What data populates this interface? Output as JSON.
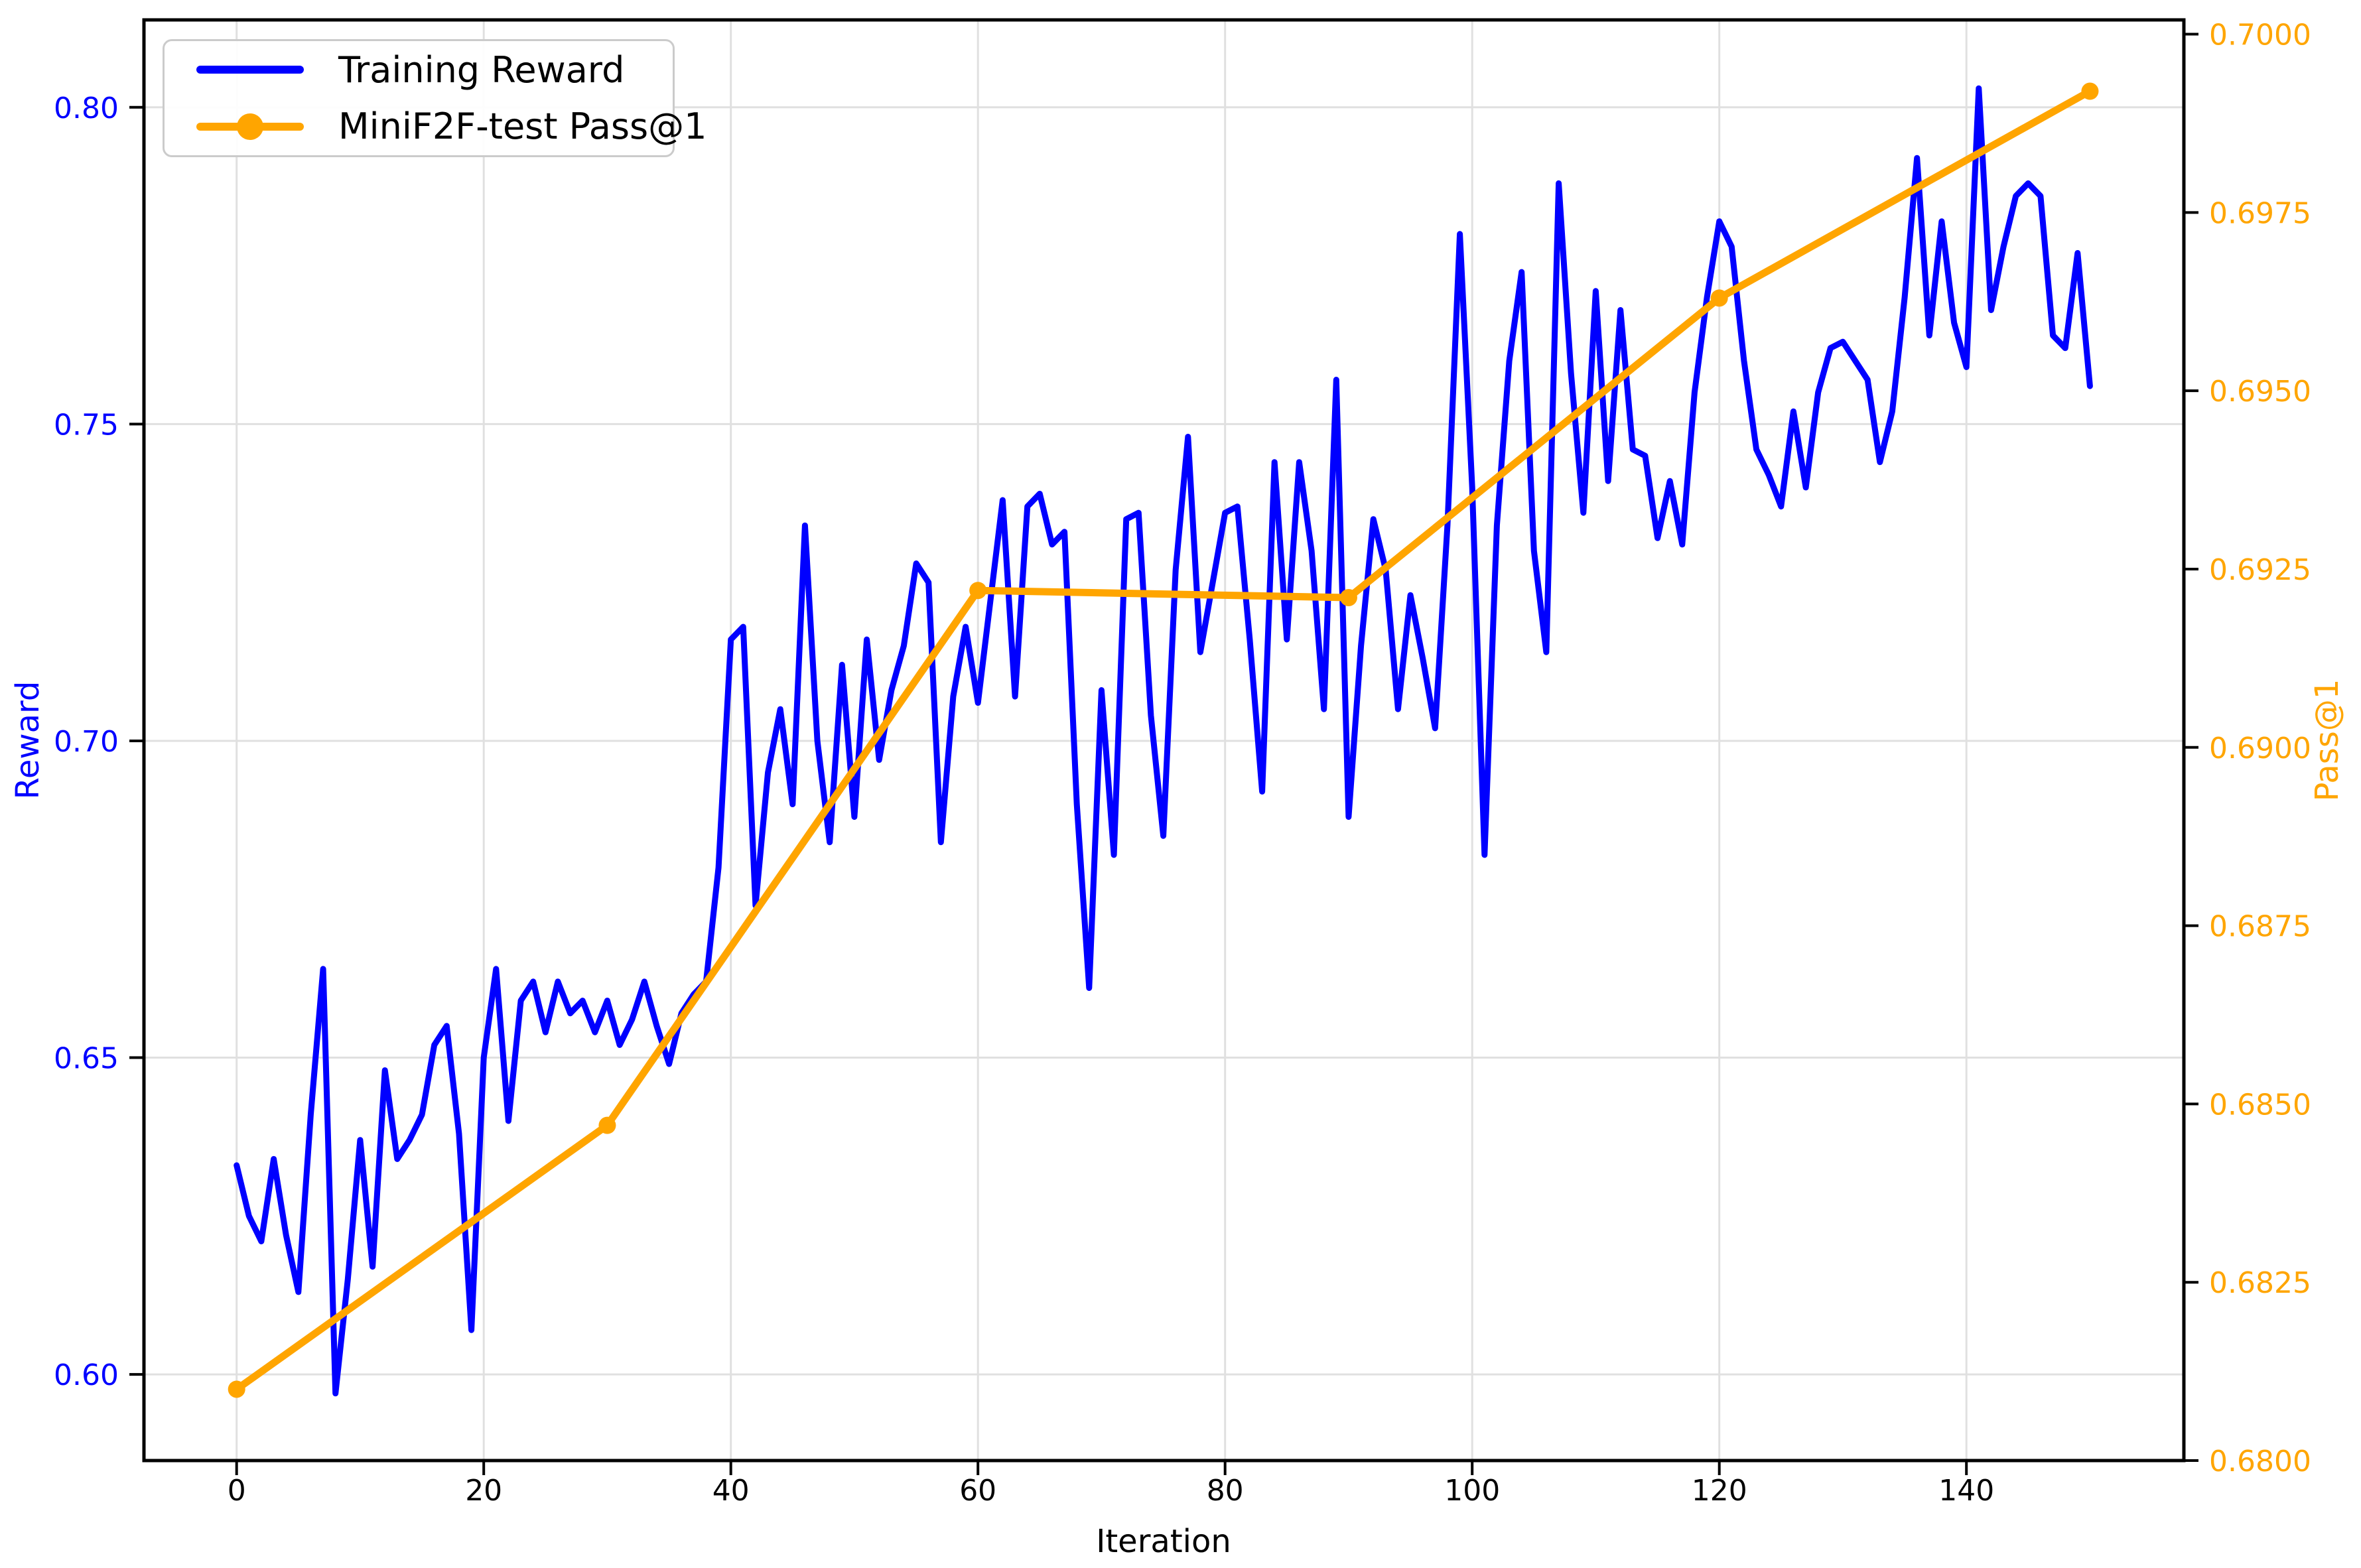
{
  "figure": {
    "background": "#ffffff",
    "accent_blue": "#0000ff",
    "accent_orange": "#ffa500",
    "grid_color": "#e0e0e0",
    "spine_color": "#000000"
  },
  "chart_data": {
    "type": "line",
    "title": "",
    "xlabel": "Iteration",
    "ylabel_left": "Reward",
    "ylabel_right": "Pass@1",
    "grid": true,
    "legend_position": "upper left",
    "xlim": [
      -7.5,
      157.6
    ],
    "ylim_left": [
      0.5864,
      0.8138
    ],
    "ylim_right": [
      0.68,
      0.7002
    ],
    "x_ticks": {
      "values": [
        0,
        20,
        40,
        60,
        80,
        100,
        120,
        140
      ],
      "labels": [
        "0",
        "20",
        "40",
        "60",
        "80",
        "100",
        "120",
        "140"
      ]
    },
    "yleft_ticks": {
      "values": [
        0.6,
        0.65,
        0.7,
        0.75,
        0.8
      ],
      "labels": [
        "0.60",
        "0.65",
        "0.70",
        "0.75",
        "0.80"
      ]
    },
    "yright_ticks": {
      "values": [
        0.68,
        0.6825,
        0.685,
        0.6875,
        0.69,
        0.6925,
        0.695,
        0.6975,
        0.7
      ],
      "labels": [
        "0.6800",
        "0.6825",
        "0.6850",
        "0.6875",
        "0.6900",
        "0.6925",
        "0.6950",
        "0.6975",
        "0.7000"
      ]
    },
    "series": [
      {
        "name": "Training Reward",
        "axis": "left",
        "color": "#0000ff",
        "linewidth": 9,
        "marker": null,
        "x_start": 0,
        "x_step": 1,
        "y": [
          0.633,
          0.625,
          0.621,
          0.634,
          0.622,
          0.613,
          0.641,
          0.664,
          0.597,
          0.615,
          0.637,
          0.617,
          0.648,
          0.634,
          0.637,
          0.641,
          0.652,
          0.655,
          0.638,
          0.607,
          0.65,
          0.664,
          0.64,
          0.659,
          0.662,
          0.654,
          0.662,
          0.657,
          0.659,
          0.654,
          0.659,
          0.652,
          0.656,
          0.662,
          0.655,
          0.649,
          0.657,
          0.66,
          0.662,
          0.68,
          0.716,
          0.718,
          0.674,
          0.695,
          0.705,
          0.69,
          0.734,
          0.7,
          0.684,
          0.712,
          0.688,
          0.716,
          0.697,
          0.708,
          0.715,
          0.728,
          0.725,
          0.684,
          0.707,
          0.718,
          0.706,
          0.722,
          0.738,
          0.707,
          0.737,
          0.739,
          0.731,
          0.733,
          0.69,
          0.661,
          0.708,
          0.682,
          0.735,
          0.736,
          0.704,
          0.685,
          0.727,
          0.748,
          0.714,
          0.725,
          0.736,
          0.737,
          0.716,
          0.692,
          0.744,
          0.716,
          0.744,
          0.73,
          0.705,
          0.757,
          0.688,
          0.715,
          0.735,
          0.727,
          0.705,
          0.723,
          0.713,
          0.702,
          0.734,
          0.78,
          0.74,
          0.682,
          0.734,
          0.76,
          0.774,
          0.73,
          0.714,
          0.788,
          0.758,
          0.736,
          0.771,
          0.741,
          0.768,
          0.746,
          0.745,
          0.732,
          0.741,
          0.731,
          0.755,
          0.77,
          0.782,
          0.778,
          0.76,
          0.746,
          0.742,
          0.737,
          0.752,
          0.74,
          0.755,
          0.762,
          0.763,
          0.76,
          0.757,
          0.744,
          0.752,
          0.77,
          0.792,
          0.764,
          0.782,
          0.766,
          0.759,
          0.803,
          0.768,
          0.778,
          0.786,
          0.788,
          0.786,
          0.764,
          0.762,
          0.777,
          0.756
        ]
      },
      {
        "name": "MiniF2F-test Pass@1",
        "axis": "right",
        "color": "#ffa500",
        "linewidth": 11,
        "marker": "circle",
        "marker_size": 13,
        "x": [
          0,
          30,
          60,
          90,
          120,
          150
        ],
        "y": [
          0.681,
          0.6847,
          0.6922,
          0.6921,
          0.6963,
          0.6992
        ]
      }
    ]
  }
}
